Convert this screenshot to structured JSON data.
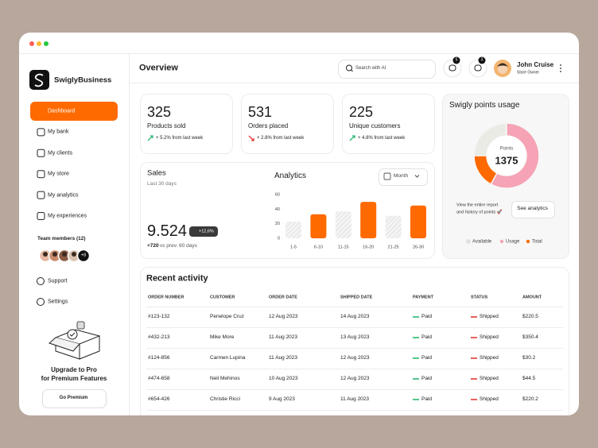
{
  "sidebar": {
    "brand": "SwiglyBusiness",
    "nav": [
      {
        "label": "Dashboard",
        "active": true
      },
      {
        "label": "My bank"
      },
      {
        "label": "My clients"
      },
      {
        "label": "My store"
      },
      {
        "label": "My analytics"
      },
      {
        "label": "My experiences"
      }
    ],
    "team_title": "Team members (12)",
    "team_more": "+8",
    "support": "Support",
    "settings": "Settings",
    "promo_title": [
      "Upgrade to Pro",
      "for Premium Features"
    ],
    "promo_button": "Go Premium"
  },
  "header": {
    "title": "Overview",
    "search": "Search with AI",
    "messages_badge": 5,
    "notifications_badge": 3,
    "user_name": "John Cruise",
    "user_role": "Store Owner"
  },
  "stats": [
    {
      "value": 325,
      "label": "Products sold",
      "change": "+ 5.2% from last week",
      "trend": "up"
    },
    {
      "value": 531,
      "label": "Orders placed",
      "change": "+ 2.8% from last week",
      "trend": "down"
    },
    {
      "value": 225,
      "label": "Unique customers",
      "change": "+ 4.8% from last week",
      "trend": "up"
    }
  ],
  "sales": {
    "title": "Sales",
    "period": "Last 30 days",
    "value": "9.524",
    "badge": "+12,6%",
    "delta": "+720",
    "delta_note": "vs prev. 60 days"
  },
  "analytics": {
    "type": "bar",
    "title": "Analytics",
    "period": "Month",
    "categories": [
      "1-5",
      "6-10",
      "11-15",
      "16-20",
      "21-25",
      "26-30"
    ],
    "values": [
      23,
      33,
      37,
      50,
      31,
      45
    ],
    "bar_styles": [
      "hatched",
      "solid",
      "hatched",
      "solid",
      "hatched",
      "solid"
    ],
    "color": "#ff6a00",
    "ylim": [
      0,
      60
    ],
    "yticks": [
      0,
      20,
      40,
      60
    ]
  },
  "points": {
    "type": "pie",
    "title": "Swigly points usage",
    "center_label": "Points",
    "center_value": 1375,
    "categories": [
      "Available",
      "Usage",
      "Total"
    ],
    "values": [
      25,
      58,
      17
    ],
    "colors": [
      "#ebebe6",
      "#f5a3b5",
      "#ff6a00"
    ],
    "note": [
      "View the entire report",
      "and history of points 🚀"
    ],
    "button": "See analytics"
  },
  "recent": {
    "title": "Recent activity",
    "columns": [
      "ORDER NUMBER",
      "CUSTOMER",
      "ORDER DATE",
      "SHIPPED DATE",
      "PAYMENT",
      "STATUS",
      "AMOUNT"
    ],
    "rows": [
      [
        "#123-132",
        "Penelope Cruz",
        "12 Aug 2023",
        "14 Aug 2023",
        "Paid",
        "Shipped",
        "$220.5"
      ],
      [
        "#432-213",
        "Mike More",
        "11 Aug 2023",
        "13 Aug 2023",
        "Paid",
        "Shipped",
        "$350.4"
      ],
      [
        "#124-856",
        "Carmen Lupina",
        "11 Aug 2023",
        "12 Aug 2023",
        "Paid",
        "Shipped",
        "$30.2"
      ],
      [
        "#474-658",
        "Neil Mehinos",
        "10 Aug 2023",
        "12 Aug 2023",
        "Paid",
        "Shipped",
        "$44.5"
      ],
      [
        "#654-426",
        "Christie Ricci",
        "9 Aug 2023",
        "11 Aug 2023",
        "Paid",
        "Shipped",
        "$220.2"
      ]
    ]
  }
}
